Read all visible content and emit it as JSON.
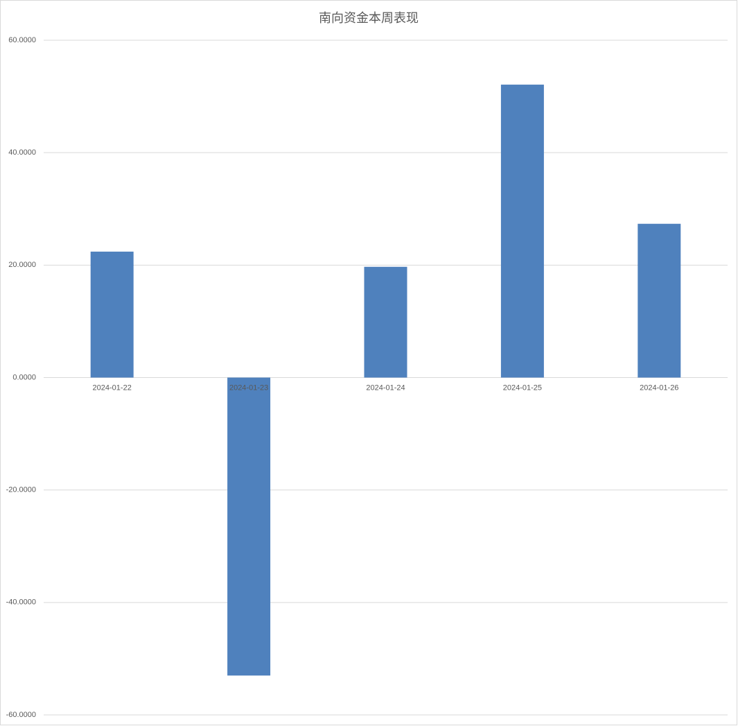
{
  "chart_data": {
    "type": "bar",
    "title": "南向资金本周表现",
    "categories": [
      "2024-01-22",
      "2024-01-23",
      "2024-01-24",
      "2024-01-25",
      "2024-01-26"
    ],
    "values": [
      22.4,
      -53.0,
      19.7,
      52.1,
      27.35
    ],
    "color": "#4f81bd",
    "ylim": [
      -60,
      60
    ],
    "yticks": [
      {
        "value": -60,
        "label": "-60.0000"
      },
      {
        "value": -40,
        "label": "-40.0000"
      },
      {
        "value": -20,
        "label": "-20.0000"
      },
      {
        "value": 0,
        "label": "0.0000"
      },
      {
        "value": 20,
        "label": "20.0000"
      },
      {
        "value": 40,
        "label": "40.0000"
      },
      {
        "value": 60,
        "label": "60.0000"
      }
    ],
    "grid": true
  }
}
